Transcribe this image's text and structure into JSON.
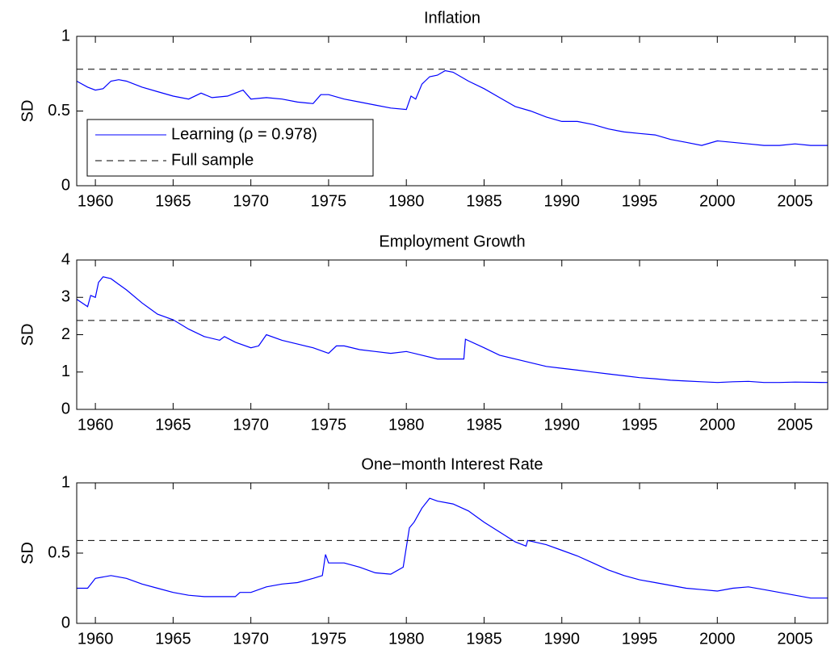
{
  "chart_data": [
    {
      "type": "line",
      "title": "Inflation",
      "ylabel": "SD",
      "xlim": [
        1958.8,
        2007.1
      ],
      "ylim": [
        0,
        1
      ],
      "xticks": [
        1960,
        1965,
        1970,
        1975,
        1980,
        1985,
        1990,
        1995,
        2000,
        2005
      ],
      "yticks": [
        0,
        0.5,
        1
      ],
      "legend": "lower left",
      "x": [
        1958.8,
        1959.5,
        1960,
        1960.5,
        1961,
        1961.5,
        1962,
        1963,
        1964,
        1965,
        1966,
        1966.8,
        1967.5,
        1968.5,
        1969.5,
        1970,
        1971,
        1972,
        1973,
        1974,
        1974.5,
        1975,
        1976,
        1977,
        1978,
        1979,
        1980,
        1980.3,
        1980.6,
        1981,
        1981.5,
        1982,
        1982.5,
        1983,
        1984,
        1985,
        1986,
        1987,
        1988,
        1989,
        1990,
        1991,
        1992,
        1993,
        1994,
        1995,
        1996,
        1997,
        1998,
        1999,
        2000,
        2001,
        2002,
        2003,
        2004,
        2005,
        2006,
        2007.1
      ],
      "series": [
        {
          "name": "Learning (ρ = 0.978)",
          "color": "#0000ff",
          "values": [
            0.7,
            0.66,
            0.64,
            0.65,
            0.7,
            0.71,
            0.7,
            0.66,
            0.63,
            0.6,
            0.58,
            0.62,
            0.59,
            0.6,
            0.64,
            0.58,
            0.59,
            0.58,
            0.56,
            0.55,
            0.61,
            0.61,
            0.58,
            0.56,
            0.54,
            0.52,
            0.51,
            0.6,
            0.58,
            0.68,
            0.73,
            0.74,
            0.77,
            0.76,
            0.7,
            0.65,
            0.59,
            0.53,
            0.5,
            0.46,
            0.43,
            0.43,
            0.41,
            0.38,
            0.36,
            0.35,
            0.34,
            0.31,
            0.29,
            0.27,
            0.3,
            0.29,
            0.28,
            0.27,
            0.27,
            0.28,
            0.27,
            0.27
          ]
        },
        {
          "name": "Full sample",
          "color": "#000000",
          "dashed": true,
          "value": 0.78
        }
      ]
    },
    {
      "type": "line",
      "title": "Employment Growth",
      "ylabel": "SD",
      "xlim": [
        1958.8,
        2007.1
      ],
      "ylim": [
        0,
        4
      ],
      "xticks": [
        1960,
        1965,
        1970,
        1975,
        1980,
        1985,
        1990,
        1995,
        2000,
        2005
      ],
      "yticks": [
        0,
        1,
        2,
        3,
        4
      ],
      "x": [
        1958.8,
        1959.5,
        1959.7,
        1960,
        1960.2,
        1960.5,
        1961,
        1961.5,
        1962,
        1963,
        1964,
        1965,
        1966,
        1967,
        1968,
        1968.3,
        1969,
        1970,
        1970.5,
        1971,
        1972,
        1973,
        1974,
        1975,
        1975.5,
        1976,
        1977,
        1978,
        1979,
        1980,
        1981,
        1982,
        1983,
        1983.7,
        1983.8,
        1985,
        1986,
        1987,
        1988,
        1989,
        1990,
        1991,
        1992,
        1993,
        1994,
        1995,
        1996,
        1997,
        1998,
        1999,
        2000,
        2001,
        2002,
        2003,
        2004,
        2005,
        2007.1
      ],
      "series": [
        {
          "color": "#0000ff",
          "values": [
            2.95,
            2.75,
            3.05,
            3.0,
            3.4,
            3.55,
            3.5,
            3.35,
            3.2,
            2.85,
            2.55,
            2.4,
            2.15,
            1.95,
            1.85,
            1.95,
            1.8,
            1.65,
            1.7,
            2.0,
            1.85,
            1.75,
            1.65,
            1.5,
            1.7,
            1.7,
            1.6,
            1.55,
            1.5,
            1.55,
            1.45,
            1.35,
            1.35,
            1.35,
            1.88,
            1.65,
            1.45,
            1.35,
            1.25,
            1.15,
            1.1,
            1.05,
            1.0,
            0.95,
            0.9,
            0.85,
            0.82,
            0.78,
            0.76,
            0.74,
            0.72,
            0.74,
            0.75,
            0.72,
            0.72,
            0.73,
            0.72
          ]
        },
        {
          "color": "#000000",
          "dashed": true,
          "value": 2.38
        }
      ]
    },
    {
      "type": "line",
      "title": "One−month Interest Rate",
      "ylabel": "SD",
      "xlim": [
        1958.8,
        2007.1
      ],
      "ylim": [
        0,
        1
      ],
      "xticks": [
        1960,
        1965,
        1970,
        1975,
        1980,
        1985,
        1990,
        1995,
        2000,
        2005
      ],
      "yticks": [
        0,
        0.5,
        1
      ],
      "x": [
        1958.8,
        1959.5,
        1960,
        1961,
        1962,
        1963,
        1964,
        1965,
        1966,
        1967,
        1968,
        1969,
        1969.3,
        1970,
        1971,
        1972,
        1973,
        1974,
        1974.6,
        1974.8,
        1975,
        1976,
        1977,
        1978,
        1979,
        1979.8,
        1980.2,
        1980.5,
        1981,
        1981.5,
        1982,
        1983,
        1984,
        1985,
        1986,
        1987,
        1987.7,
        1987.8,
        1989,
        1990,
        1991,
        1992,
        1993,
        1994,
        1995,
        1996,
        1997,
        1998,
        1999,
        2000,
        2001,
        2002,
        2003,
        2004,
        2005,
        2006,
        2007.1
      ],
      "series": [
        {
          "color": "#0000ff",
          "values": [
            0.25,
            0.25,
            0.32,
            0.34,
            0.32,
            0.28,
            0.25,
            0.22,
            0.2,
            0.19,
            0.19,
            0.19,
            0.22,
            0.22,
            0.26,
            0.28,
            0.29,
            0.32,
            0.34,
            0.49,
            0.43,
            0.43,
            0.4,
            0.36,
            0.35,
            0.4,
            0.68,
            0.72,
            0.82,
            0.89,
            0.87,
            0.85,
            0.8,
            0.72,
            0.65,
            0.58,
            0.55,
            0.59,
            0.56,
            0.52,
            0.48,
            0.43,
            0.38,
            0.34,
            0.31,
            0.29,
            0.27,
            0.25,
            0.24,
            0.23,
            0.25,
            0.26,
            0.24,
            0.22,
            0.2,
            0.18,
            0.18
          ]
        },
        {
          "color": "#000000",
          "dashed": true,
          "value": 0.59
        }
      ]
    }
  ]
}
